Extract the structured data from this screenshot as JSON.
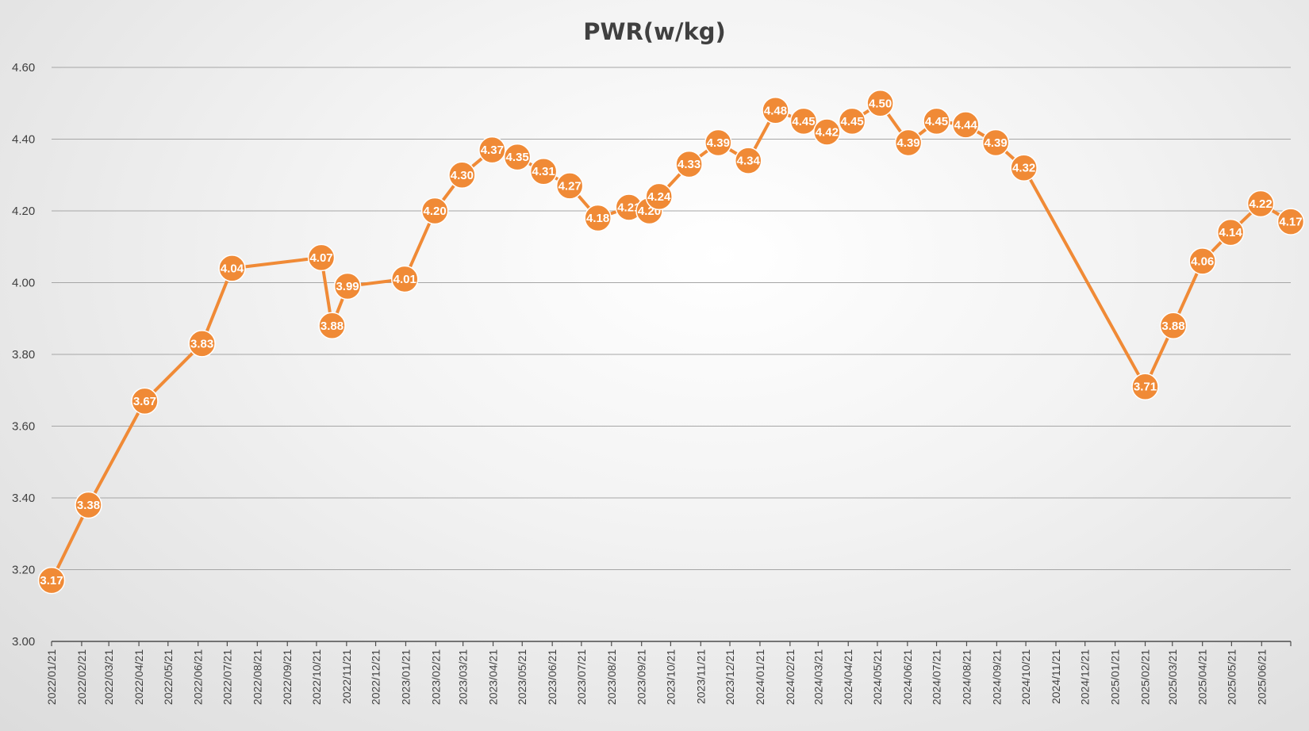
{
  "chart_data": {
    "type": "line",
    "title": "PWR(w/kg)",
    "xlabel": "",
    "ylabel": "",
    "ylim": [
      3.0,
      4.6
    ],
    "y_ticks": [
      "3.00",
      "3.20",
      "3.40",
      "3.60",
      "3.80",
      "4.00",
      "4.20",
      "4.40",
      "4.60"
    ],
    "x_tick_labels": [
      "2022/01/21",
      "2022/02/21",
      "2022/03/21",
      "2022/04/21",
      "2022/05/21",
      "2022/06/21",
      "2022/07/21",
      "2022/08/21",
      "2022/09/21",
      "2022/10/21",
      "2022/11/21",
      "2022/12/21",
      "2023/01/21",
      "2023/02/21",
      "2023/03/21",
      "2023/04/21",
      "2023/05/21",
      "2023/06/21",
      "2023/07/21",
      "2023/08/21",
      "2023/09/21",
      "2023/10/21",
      "2023/11/21",
      "2023/12/21",
      "2024/01/21",
      "2024/02/21",
      "2024/03/21",
      "2024/04/21",
      "2024/05/21",
      "2024/06/21",
      "2024/07/21",
      "2024/08/21",
      "2024/09/21",
      "2024/10/21",
      "2024/11/21",
      "2024/12/21",
      "2025/01/21",
      "2025/02/21",
      "2025/03/21",
      "2025/04/21",
      "2025/05/21",
      "2025/06/21"
    ],
    "x_range": [
      "2022/01/21",
      "2025/07/21"
    ],
    "grid": true,
    "legend": "none",
    "line_color": "#F08A36",
    "series": [
      {
        "x": [
          "2022/01/21",
          "2022/02/28",
          "2022/04/27",
          "2022/06/25",
          "2022/07/26",
          "2022/10/26",
          "2022/11/06",
          "2022/11/22",
          "2023/01/20",
          "2023/02/20",
          "2023/03/20",
          "2023/04/20",
          "2023/05/16",
          "2023/06/12",
          "2023/07/09",
          "2023/08/07",
          "2023/09/08",
          "2023/09/29",
          "2023/10/09",
          "2023/11/09",
          "2023/12/09",
          "2024/01/09",
          "2024/02/06",
          "2024/03/06",
          "2024/03/30",
          "2024/04/25",
          "2024/05/24",
          "2024/06/22",
          "2024/07/21",
          "2024/08/20",
          "2024/09/20",
          "2024/10/19",
          "2025/02/21",
          "2025/03/22",
          "2025/04/21",
          "2025/05/20",
          "2025/06/20",
          "2025/07/21"
        ],
        "values": [
          3.17,
          3.38,
          3.67,
          3.83,
          4.04,
          4.07,
          3.88,
          3.99,
          4.01,
          4.2,
          4.3,
          4.37,
          4.35,
          4.31,
          4.27,
          4.18,
          4.21,
          4.2,
          4.24,
          4.33,
          4.39,
          4.34,
          4.48,
          4.45,
          4.42,
          4.45,
          4.5,
          4.39,
          4.45,
          4.44,
          4.39,
          4.32,
          3.71,
          3.88,
          4.06,
          4.14,
          4.22,
          4.17
        ],
        "labels": [
          "3.17",
          "3.38",
          "3.67",
          "3.83",
          "4.04",
          "4.07",
          "3.88",
          "3.99",
          "4.01",
          "4.20",
          "4.30",
          "4.37",
          "4.35",
          "4.31",
          "4.27",
          "4.18",
          "4.21",
          "4.20",
          "4.24",
          "4.33",
          "4.39",
          "4.34",
          "4.48",
          "4.45",
          "4.42",
          "4.45",
          "4.50",
          "4.39",
          "4.45",
          "4.44",
          "4.39",
          "4.32",
          "3.71",
          "3.88",
          "4.06",
          "4.14",
          "4.22",
          "4.17"
        ]
      }
    ]
  }
}
